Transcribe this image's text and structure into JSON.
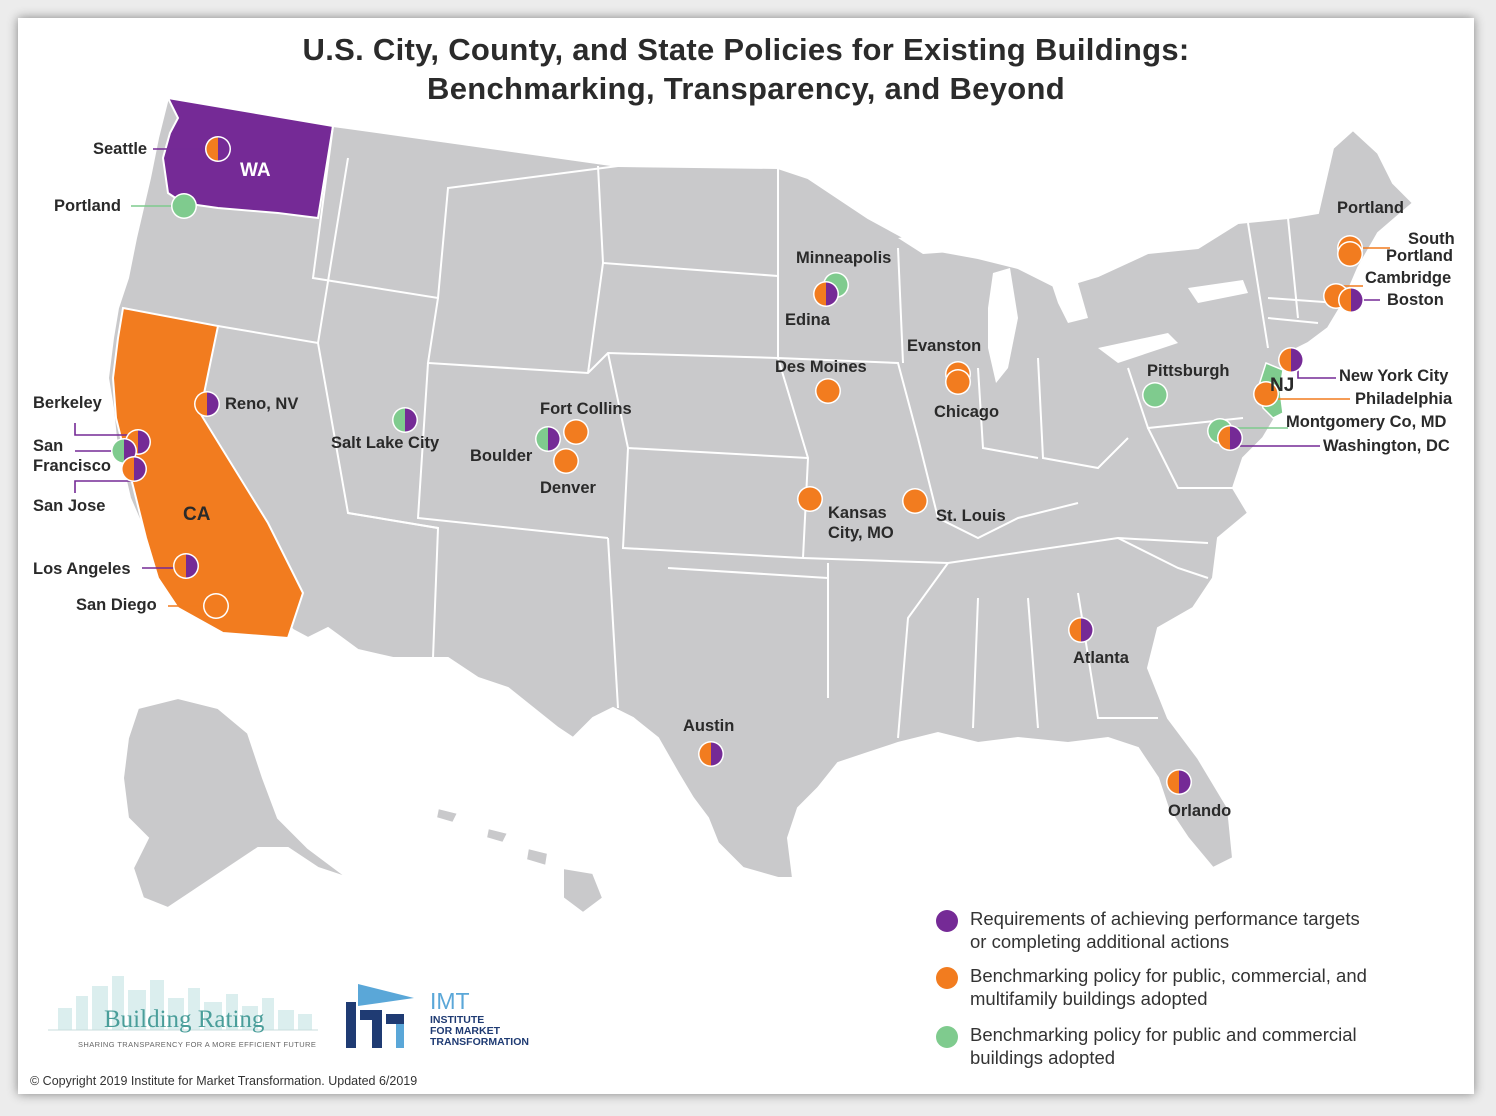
{
  "title_line1": "U.S. City, County, and State Policies for Existing Buildings:",
  "title_line2": "Benchmarking, Transparency, and Beyond",
  "colors": {
    "purple": "#752a96",
    "orange": "#f27c1f",
    "green": "#7fcb8e",
    "land": "#c9c9cb",
    "border": "#ffffff"
  },
  "states": {
    "wa": "WA",
    "ca": "CA",
    "nj": "NJ"
  },
  "markers": [
    {
      "name": "Seattle",
      "policies": [
        "orange",
        "purple"
      ]
    },
    {
      "name": "Portland",
      "policies": [
        "green"
      ]
    },
    {
      "name": "Berkeley",
      "policies": [
        "orange",
        "purple"
      ]
    },
    {
      "name": "San Francisco",
      "policies": [
        "green",
        "purple"
      ]
    },
    {
      "name": "San Jose",
      "policies": [
        "orange",
        "purple"
      ]
    },
    {
      "name": "Los Angeles",
      "policies": [
        "orange",
        "purple"
      ]
    },
    {
      "name": "San Diego",
      "policies": [
        "orange"
      ]
    },
    {
      "name": "Reno, NV",
      "policies": [
        "orange",
        "purple"
      ]
    },
    {
      "name": "Salt Lake City",
      "policies": [
        "green",
        "purple"
      ]
    },
    {
      "name": "Boulder",
      "policies": [
        "green",
        "purple"
      ]
    },
    {
      "name": "Fort Collins",
      "policies": [
        "orange"
      ]
    },
    {
      "name": "Denver",
      "policies": [
        "orange"
      ]
    },
    {
      "name": "Minneapolis",
      "policies": [
        "green"
      ]
    },
    {
      "name": "Edina",
      "policies": [
        "orange",
        "purple"
      ]
    },
    {
      "name": "Des Moines",
      "policies": [
        "orange"
      ]
    },
    {
      "name": "Evanston",
      "policies": [
        "orange"
      ]
    },
    {
      "name": "Chicago",
      "policies": [
        "orange"
      ]
    },
    {
      "name": "Kansas City, MO",
      "policies": [
        "orange"
      ]
    },
    {
      "name": "St. Louis",
      "policies": [
        "orange"
      ]
    },
    {
      "name": "Austin",
      "policies": [
        "orange",
        "purple"
      ]
    },
    {
      "name": "Atlanta",
      "policies": [
        "orange",
        "purple"
      ]
    },
    {
      "name": "Orlando",
      "policies": [
        "orange",
        "purple"
      ]
    },
    {
      "name": "Pittsburgh",
      "policies": [
        "green"
      ]
    },
    {
      "name": "Portland",
      "policies": [
        "orange"
      ]
    },
    {
      "name": "South Portland",
      "policies": [
        "orange"
      ]
    },
    {
      "name": "Cambridge",
      "policies": [
        "orange"
      ]
    },
    {
      "name": "Boston",
      "policies": [
        "orange",
        "purple"
      ]
    },
    {
      "name": "New York City",
      "policies": [
        "orange",
        "purple"
      ]
    },
    {
      "name": "Philadelphia",
      "policies": [
        "orange"
      ]
    },
    {
      "name": "Montgomery Co, MD",
      "policies": [
        "green"
      ]
    },
    {
      "name": "Washington, DC",
      "policies": [
        "orange",
        "purple"
      ]
    }
  ],
  "labels": {
    "seattle": "Seattle",
    "portland_or": "Portland",
    "berkeley": "Berkeley",
    "san": "San",
    "francisco": "Francisco",
    "san_jose": "San Jose",
    "los_angeles": "Los Angeles",
    "san_diego": "San Diego",
    "reno": "Reno, NV",
    "salt_lake": "Salt Lake City",
    "boulder": "Boulder",
    "fort_collins": "Fort Collins",
    "denver": "Denver",
    "minneapolis": "Minneapolis",
    "edina": "Edina",
    "des_moines": "Des Moines",
    "evanston": "Evanston",
    "chicago": "Chicago",
    "kansas": "Kansas",
    "city_mo": "City, MO",
    "st_louis": "St. Louis",
    "austin": "Austin",
    "atlanta": "Atlanta",
    "orlando": "Orlando",
    "pittsburgh": "Pittsburgh",
    "portland_me": "Portland",
    "south": "South",
    "portland2": "Portland",
    "cambridge": "Cambridge",
    "boston": "Boston",
    "nyc": "New York City",
    "philadelphia": "Philadelphia",
    "montgomery": "Montgomery Co, MD",
    "washington": "Washington, DC"
  },
  "legend": [
    {
      "color": "purple",
      "line1": "Requirements of achieving performance targets",
      "line2": "or completing additional actions"
    },
    {
      "color": "orange",
      "line1": "Benchmarking policy for public, commercial, and",
      "line2": "multifamily buildings adopted"
    },
    {
      "color": "green",
      "line1": "Benchmarking policy for public and commercial",
      "line2": "buildings adopted"
    }
  ],
  "logos": {
    "building_rating": "Building Rating",
    "building_rating_tag": "SHARING TRANSPARENCY FOR A MORE EFFICIENT FUTURE",
    "imt": "IMT",
    "imt_line1": "INSTITUTE",
    "imt_line2": "FOR MARKET",
    "imt_line3": "TRANSFORMATION"
  },
  "copyright": "© Copyright 2019 Institute for Market Transformation. Updated 6/2019"
}
